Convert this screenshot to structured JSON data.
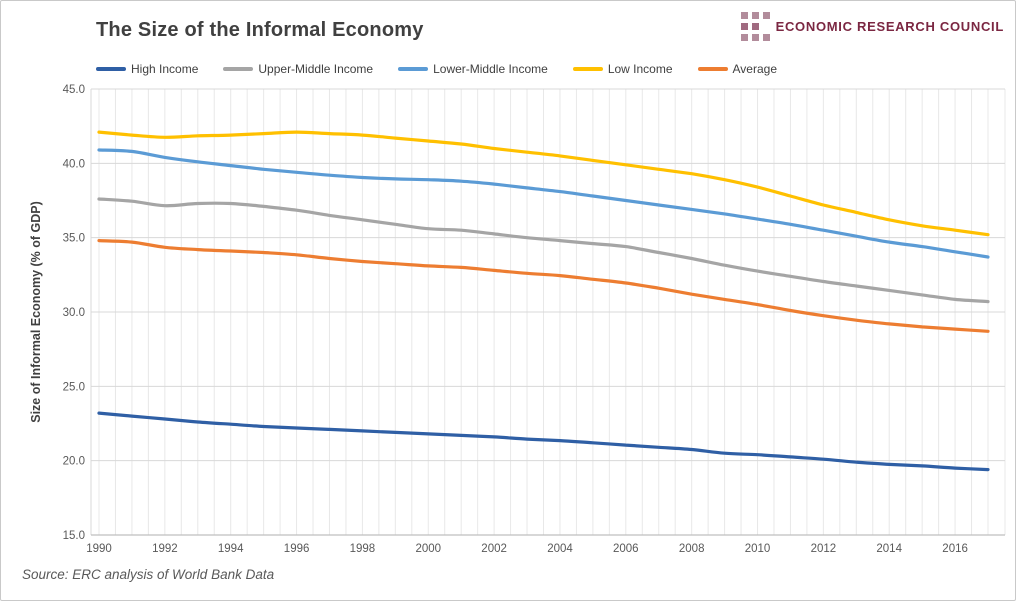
{
  "page": {
    "title": "The Size of the Informal Economy",
    "source_note": "Source: ERC analysis of World Bank Data"
  },
  "logo": {
    "text": "ECONOMIC RESEARCH COUNCIL",
    "text_color": "#7B2742",
    "square_light": "#B28C9B",
    "square_dark": "#A06A80",
    "icon": "squares-grid-icon"
  },
  "chart_data": {
    "type": "line",
    "title": "The Size of the Informal Economy",
    "xlabel": "",
    "ylabel": "Size of Informal Economy (% of GDP)",
    "ylim": [
      15.0,
      45.0
    ],
    "ytick_labels": [
      "45.0",
      "40.0",
      "35.0",
      "30.0",
      "25.0",
      "20.0",
      "15.0"
    ],
    "yticks": [
      45,
      40,
      35,
      30,
      25,
      20,
      15
    ],
    "xtick_labels": [
      "1990",
      "1992",
      "1994",
      "1996",
      "1998",
      "2000",
      "2002",
      "2004",
      "2006",
      "2008",
      "2010",
      "2012",
      "2014",
      "2016"
    ],
    "xticks": [
      1990,
      1992,
      1994,
      1996,
      1998,
      2000,
      2002,
      2004,
      2006,
      2008,
      2010,
      2012,
      2014,
      2016
    ],
    "grid": "horizontal major lines + dense light vertical minor lines (half-year)",
    "legend_position": "top",
    "x": [
      1990,
      1991,
      1992,
      1993,
      1994,
      1995,
      1996,
      1997,
      1998,
      1999,
      2000,
      2001,
      2002,
      2003,
      2004,
      2005,
      2006,
      2007,
      2008,
      2009,
      2010,
      2011,
      2012,
      2013,
      2014,
      2015,
      2016,
      2017
    ],
    "series": [
      {
        "name": "High Income",
        "color": "#2F5FA5",
        "values": [
          23.2,
          23.0,
          22.8,
          22.6,
          22.45,
          22.3,
          22.2,
          22.1,
          22.0,
          21.9,
          21.8,
          21.7,
          21.6,
          21.45,
          21.35,
          21.2,
          21.05,
          20.9,
          20.75,
          20.5,
          20.4,
          20.25,
          20.1,
          19.9,
          19.75,
          19.65,
          19.5,
          19.4
        ]
      },
      {
        "name": "Upper-Middle Income",
        "color": "#A5A5A5",
        "values": [
          37.6,
          37.45,
          37.15,
          37.3,
          37.3,
          37.1,
          36.85,
          36.5,
          36.2,
          35.9,
          35.6,
          35.5,
          35.25,
          35.0,
          34.8,
          34.6,
          34.4,
          34.0,
          33.6,
          33.15,
          32.75,
          32.4,
          32.05,
          31.75,
          31.45,
          31.15,
          30.85,
          30.7
        ]
      },
      {
        "name": "Lower-Middle Income",
        "color": "#5B9BD5",
        "values": [
          40.9,
          40.8,
          40.4,
          40.1,
          39.85,
          39.6,
          39.4,
          39.2,
          39.05,
          38.95,
          38.9,
          38.8,
          38.6,
          38.35,
          38.1,
          37.8,
          37.5,
          37.2,
          36.9,
          36.6,
          36.25,
          35.9,
          35.5,
          35.1,
          34.7,
          34.4,
          34.05,
          33.7
        ]
      },
      {
        "name": "Low Income",
        "color": "#FFC000",
        "values": [
          42.1,
          41.9,
          41.75,
          41.85,
          41.9,
          42.0,
          42.1,
          42.0,
          41.9,
          41.7,
          41.5,
          41.3,
          41.0,
          40.75,
          40.5,
          40.2,
          39.9,
          39.6,
          39.3,
          38.9,
          38.4,
          37.8,
          37.2,
          36.7,
          36.2,
          35.8,
          35.5,
          35.2
        ]
      },
      {
        "name": "Average",
        "color": "#ED7D31",
        "values": [
          34.8,
          34.7,
          34.35,
          34.2,
          34.1,
          34.0,
          33.85,
          33.6,
          33.4,
          33.25,
          33.1,
          33.0,
          32.8,
          32.6,
          32.45,
          32.2,
          31.95,
          31.6,
          31.2,
          30.85,
          30.5,
          30.1,
          29.75,
          29.45,
          29.2,
          29.0,
          28.85,
          28.7
        ]
      }
    ],
    "colors": {
      "grid_major": "#D8D8D8",
      "grid_minor": "#E8E8E8",
      "axis_line": "#BFBFBF",
      "tick_text": "#595959",
      "axis_title_text": "#404040"
    }
  }
}
